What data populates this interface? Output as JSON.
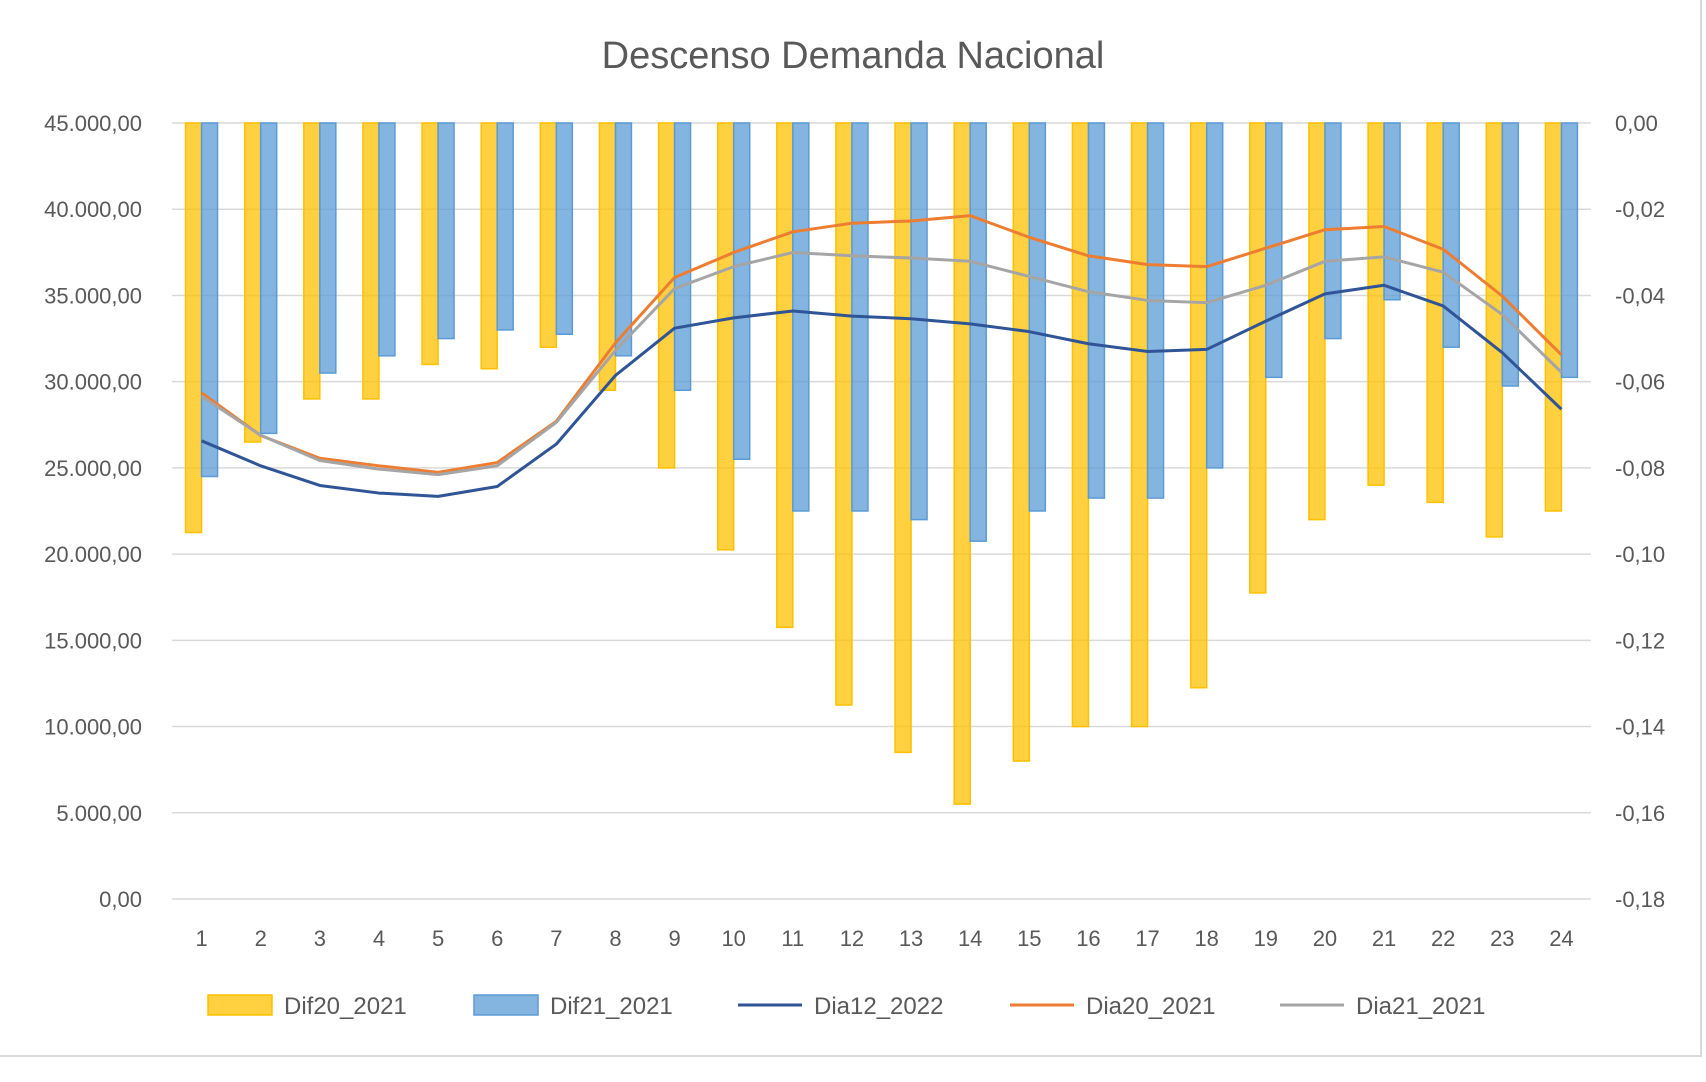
{
  "chart_data": {
    "type": "bar+line",
    "title": "Descenso Demanda Nacional",
    "categories": [
      "1",
      "2",
      "3",
      "4",
      "5",
      "6",
      "7",
      "8",
      "9",
      "10",
      "11",
      "12",
      "13",
      "14",
      "15",
      "16",
      "17",
      "18",
      "19",
      "20",
      "21",
      "22",
      "23",
      "24"
    ],
    "y_left": {
      "range": [
        0,
        45000
      ],
      "ticks": [
        "0,00",
        "5.000,00",
        "10.000,00",
        "15.000,00",
        "20.000,00",
        "25.000,00",
        "30.000,00",
        "35.000,00",
        "40.000,00",
        "45.000,00"
      ],
      "tick_values": [
        0,
        5000,
        10000,
        15000,
        20000,
        25000,
        30000,
        35000,
        40000,
        45000
      ]
    },
    "y_right": {
      "range": [
        -0.18,
        0
      ],
      "ticks": [
        "-0,18",
        "-0,16",
        "-0,14",
        "-0,12",
        "-0,10",
        "-0,08",
        "-0,06",
        "-0,04",
        "-0,02",
        "0,00"
      ],
      "tick_values": [
        -0.18,
        -0.16,
        -0.14,
        -0.12,
        -0.1,
        -0.08,
        -0.06,
        -0.04,
        -0.02,
        0
      ]
    },
    "grid": true,
    "legend_position": "bottom",
    "series": [
      {
        "name": "Dif20_2021",
        "kind": "bar",
        "axis": "right",
        "color": "#FFC000",
        "values": [
          -0.095,
          -0.074,
          -0.064,
          -0.064,
          -0.056,
          -0.057,
          -0.052,
          -0.062,
          -0.08,
          -0.099,
          -0.117,
          -0.135,
          -0.146,
          -0.158,
          -0.148,
          -0.14,
          -0.14,
          -0.131,
          -0.109,
          -0.092,
          -0.084,
          -0.088,
          -0.096,
          -0.09
        ]
      },
      {
        "name": "Dif21_2021",
        "kind": "bar",
        "axis": "right",
        "color": "#5B9BD5",
        "values": [
          -0.082,
          -0.072,
          -0.058,
          -0.054,
          -0.05,
          -0.048,
          -0.049,
          -0.054,
          -0.062,
          -0.078,
          -0.09,
          -0.09,
          -0.092,
          -0.097,
          -0.09,
          -0.087,
          -0.087,
          -0.08,
          -0.059,
          -0.05,
          -0.041,
          -0.052,
          -0.061,
          -0.059
        ]
      },
      {
        "name": "Dia12_2022",
        "kind": "line",
        "axis": "left",
        "color": "#2F5597",
        "values": [
          26570,
          25120,
          23980,
          23540,
          23350,
          23920,
          26380,
          30360,
          33100,
          33700,
          34100,
          33800,
          33650,
          33350,
          32900,
          32200,
          31750,
          31870,
          33510,
          35090,
          35590,
          34390,
          31680,
          28400
        ]
      },
      {
        "name": "Dia20_2021",
        "kind": "line",
        "axis": "left",
        "color": "#ED7D31",
        "values": [
          29350,
          26880,
          25560,
          25120,
          24740,
          25310,
          27700,
          32250,
          36040,
          37490,
          38690,
          39190,
          39320,
          39630,
          38370,
          37300,
          36790,
          36670,
          37740,
          38810,
          39000,
          37680,
          34960,
          31560
        ]
      },
      {
        "name": "Dia21_2021",
        "kind": "line",
        "axis": "left",
        "color": "#A5A5A5",
        "values": [
          29160,
          26890,
          25430,
          24930,
          24610,
          25120,
          27640,
          31810,
          35400,
          36670,
          37490,
          37300,
          37170,
          36980,
          36100,
          35220,
          34710,
          34580,
          35590,
          36980,
          37240,
          36350,
          33890,
          30540
        ]
      }
    ]
  }
}
